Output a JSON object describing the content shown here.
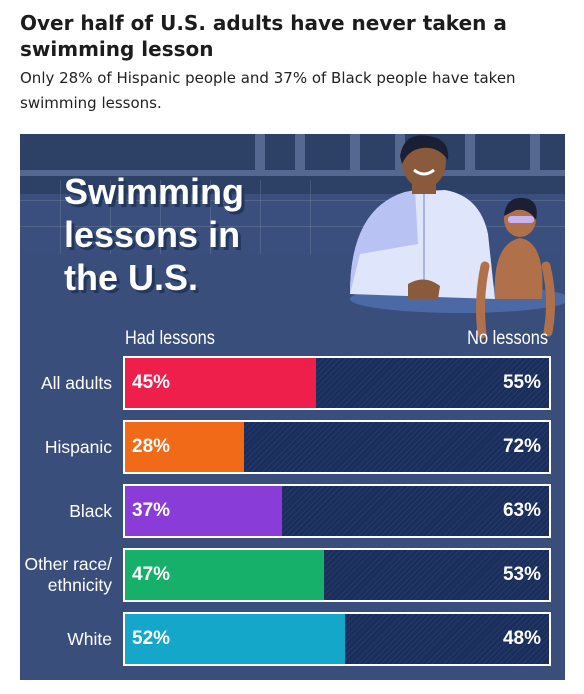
{
  "header": {
    "headline": "Over half of U.S. adults have never taken a swimming lesson",
    "subhead": "Only 28% of Hispanic people and 37% of Black people have taken swimming lessons."
  },
  "chart_data": {
    "type": "bar",
    "stacked": true,
    "orientation": "horizontal",
    "title_lines": [
      "Swimming",
      "lessons in",
      "the U.S."
    ],
    "categories": [
      "All adults",
      "Hispanic",
      "Black",
      "Other race/ ethnicity",
      "White"
    ],
    "category_lines": [
      [
        "All adults"
      ],
      [
        "Hispanic"
      ],
      [
        "Black"
      ],
      [
        "Other race/",
        "ethnicity"
      ],
      [
        "White"
      ]
    ],
    "series": [
      {
        "name": "Had lessons",
        "values": [
          45,
          28,
          37,
          47,
          52
        ],
        "labels": [
          "45%",
          "28%",
          "37%",
          "47%",
          "52%"
        ]
      },
      {
        "name": "No lessons",
        "values": [
          55,
          72,
          63,
          53,
          48
        ],
        "labels": [
          "55%",
          "72%",
          "63%",
          "53%",
          "48%"
        ]
      }
    ],
    "xlim": [
      0,
      100
    ],
    "colors": {
      "had_lessons": [
        "#ee1f4a",
        "#f06a18",
        "#8a3cd9",
        "#17b06a",
        "#15a7c9"
      ],
      "no_lessons": "#192e5c",
      "panel_background": "#3a4f7d"
    }
  }
}
